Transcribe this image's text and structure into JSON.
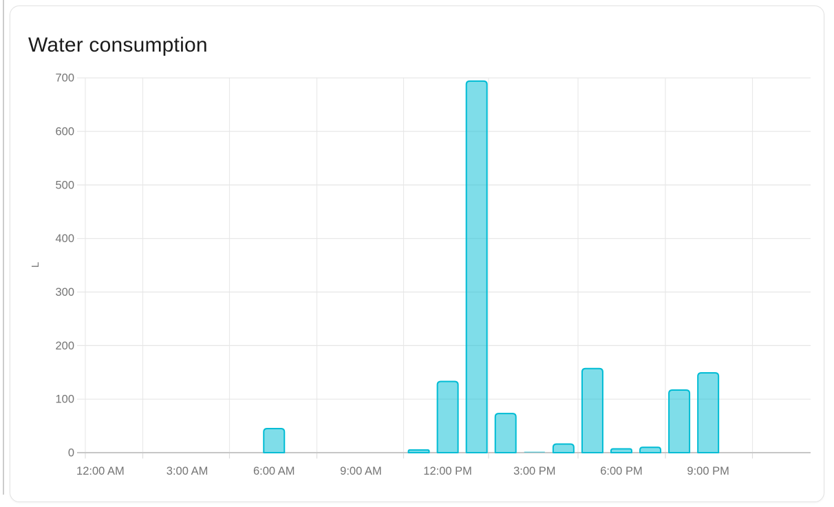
{
  "card": {
    "title": "Water consumption"
  },
  "colors": {
    "bar_stroke": "#00bcd4",
    "bar_fill": "rgba(0,188,212,0.5)",
    "title_text": "#1b1b1b",
    "axis_text": "#757575",
    "gridline": "#e6e6e6",
    "vertical_gridline": "#e9e9e9",
    "axis_line": "#c6c6c6"
  },
  "chart_data": {
    "type": "bar",
    "title": "Water consumption",
    "xlabel": "",
    "ylabel": "L",
    "unit": "L",
    "ylim": [
      0,
      700
    ],
    "y_ticks": [
      0,
      100,
      200,
      300,
      400,
      500,
      600,
      700
    ],
    "x_tick_labels": [
      "12:00 AM",
      "3:00 AM",
      "6:00 AM",
      "9:00 AM",
      "12:00 PM",
      "3:00 PM",
      "6:00 PM",
      "9:00 PM"
    ],
    "x_tick_hours": [
      0,
      3,
      6,
      9,
      12,
      15,
      18,
      21
    ],
    "categories": [
      "12:00 AM",
      "1:00 AM",
      "2:00 AM",
      "3:00 AM",
      "4:00 AM",
      "5:00 AM",
      "6:00 AM",
      "7:00 AM",
      "8:00 AM",
      "9:00 AM",
      "10:00 AM",
      "11:00 AM",
      "12:00 PM",
      "1:00 PM",
      "2:00 PM",
      "3:00 PM",
      "4:00 PM",
      "5:00 PM",
      "6:00 PM",
      "7:00 PM",
      "8:00 PM",
      "9:00 PM",
      "10:00 PM",
      "11:00 PM"
    ],
    "values": [
      0,
      0,
      0,
      0,
      0,
      0,
      45,
      0,
      0,
      0,
      0,
      5,
      133,
      694,
      73,
      2,
      16,
      157,
      7,
      10,
      117,
      149,
      0,
      0
    ],
    "grid": true,
    "legend": false
  }
}
